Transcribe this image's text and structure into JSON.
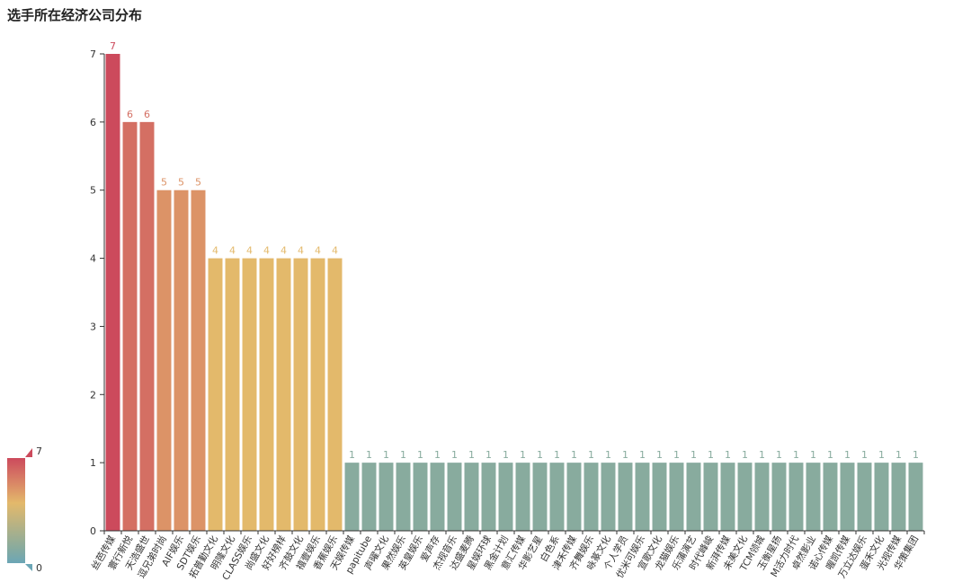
{
  "chart_data": {
    "type": "bar",
    "title": "选手所在经济公司分布",
    "xlabel": "",
    "ylabel": "",
    "ylim": [
      0,
      7
    ],
    "yticks": [
      0,
      1,
      2,
      3,
      4,
      5,
      6,
      7
    ],
    "grid": false,
    "legend": "none",
    "categories": [
      "丝芭传媒",
      "寰行新悦",
      "天浩盛世",
      "逗兄弟时尚",
      "AIF娱乐",
      "SDT娱乐",
      "拓普勤文化",
      "明隆文化",
      "CLASS娱乐",
      "尚盛文化",
      "好好榜样",
      "齐鼓文化",
      "禧壹娱乐",
      "香蕉娱乐",
      "天娱传媒",
      "papitube",
      "声曜文化",
      "果然娱乐",
      "英皇娱乐",
      "爱声存",
      "杰视音乐",
      "达盛麦腾",
      "星娱环球",
      "黑金计划",
      "意汇传媒",
      "华影艺星",
      "白色系",
      "津禾传媒",
      "齐舞娱乐",
      "咏篆文化",
      "个人学员",
      "优米可娱乐",
      "宣歌文化",
      "龙猫娱乐",
      "乐蒲演艺",
      "时代峰峻",
      "新湃传媒",
      "未美文化",
      "TCM领城",
      "玉衡星扬",
      "M活力时代",
      "卓然影业",
      "诺心传媒",
      "喔凯传媒",
      "万立达娱乐",
      "蛋禾文化",
      "光视传媒",
      "华策集团"
    ],
    "values": [
      7,
      6,
      6,
      5,
      5,
      5,
      4,
      4,
      4,
      4,
      4,
      4,
      4,
      4,
      1,
      1,
      1,
      1,
      1,
      1,
      1,
      1,
      1,
      1,
      1,
      1,
      1,
      1,
      1,
      1,
      1,
      1,
      1,
      1,
      1,
      1,
      1,
      1,
      1,
      1,
      1,
      1,
      1,
      1,
      1,
      1,
      1,
      1
    ],
    "color_scale": {
      "min": 0,
      "max": 7,
      "min_label": "0",
      "max_label": "7",
      "stops": [
        {
          "value": 0,
          "color": "#6ba6b6"
        },
        {
          "value": 1,
          "color": "#88ab9e"
        },
        {
          "value": 4,
          "color": "#e3b96b"
        },
        {
          "value": 5,
          "color": "#dc9367"
        },
        {
          "value": 6,
          "color": "#d46f63"
        },
        {
          "value": 7,
          "color": "#cc4a5c"
        }
      ]
    }
  }
}
